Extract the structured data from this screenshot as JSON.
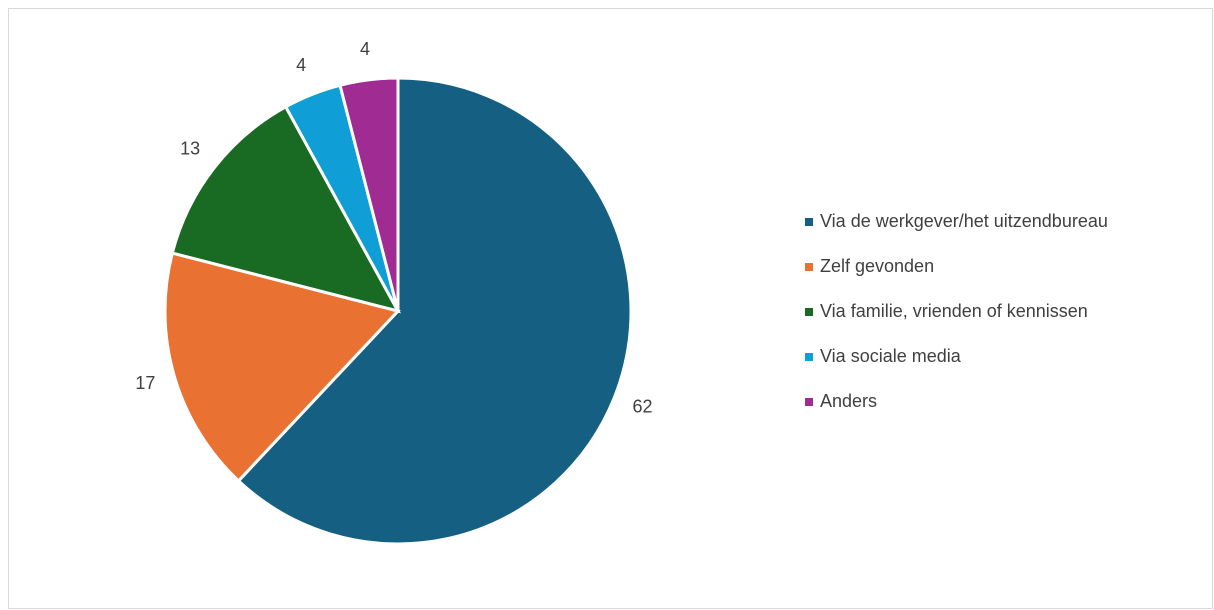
{
  "chart_data": {
    "type": "pie",
    "categories": [
      "Via de werkgever/het uitzendbureau",
      "Zelf gevonden",
      "Via familie, vrienden of kennissen",
      "Via sociale media",
      "Anders"
    ],
    "values": [
      62,
      17,
      13,
      4,
      4
    ],
    "colors": [
      "#156082",
      "#e97132",
      "#196b24",
      "#0f9ed5",
      "#a02b93"
    ],
    "legend": "right"
  }
}
